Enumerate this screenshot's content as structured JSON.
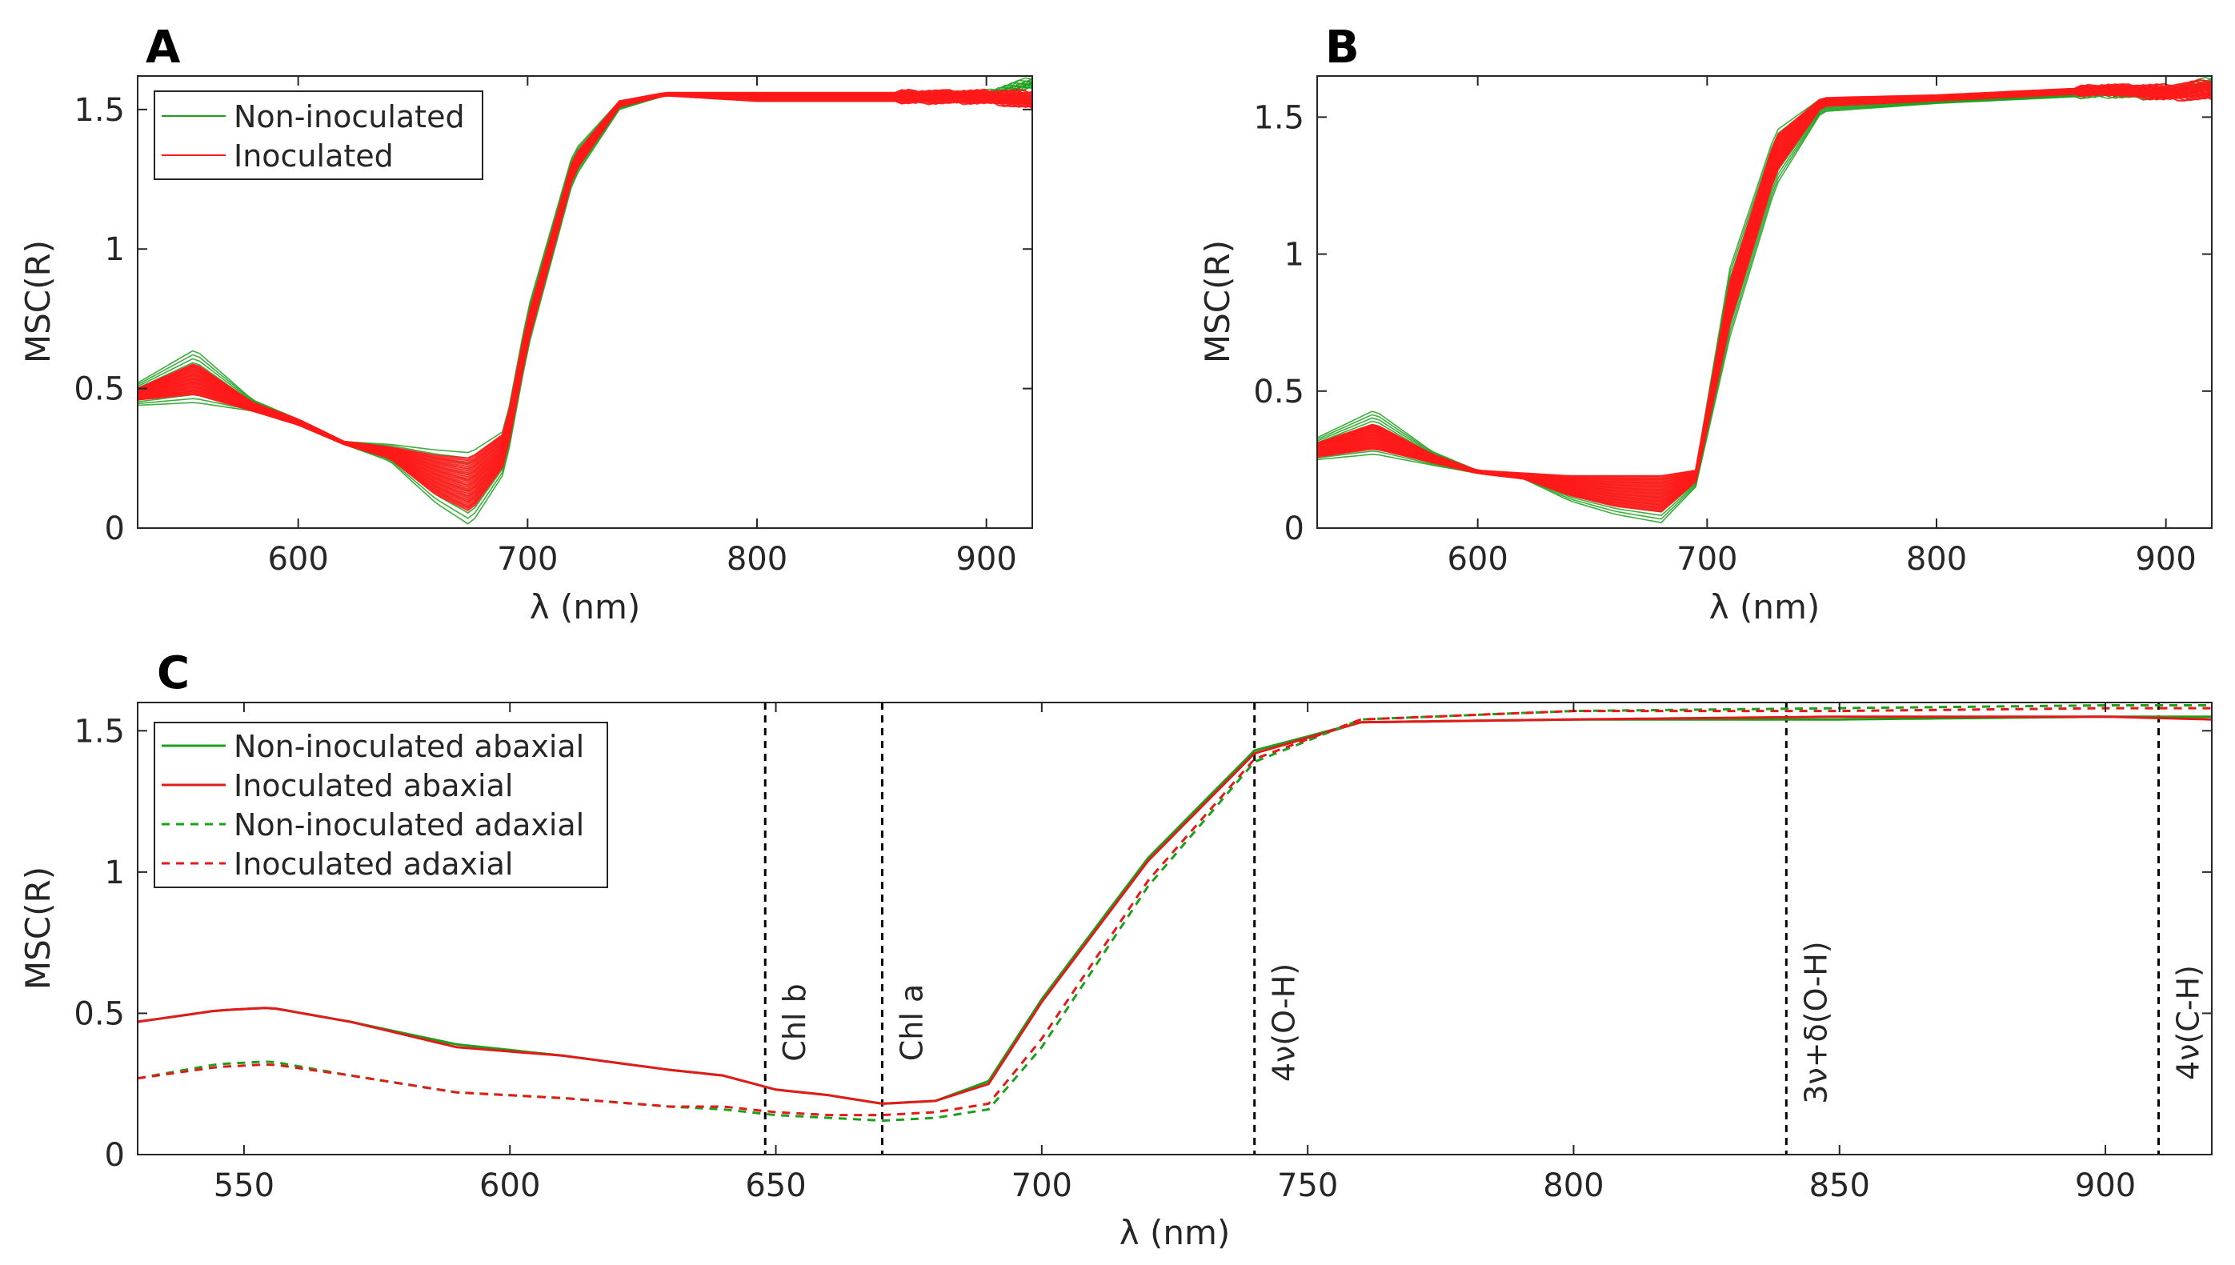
{
  "chart_data": [
    {
      "panel": "A",
      "type": "line",
      "xlabel": "λ (nm)",
      "ylabel": "MSC(R)",
      "xlim": [
        530,
        920
      ],
      "ylim": [
        0,
        1.62
      ],
      "xticks": [
        600,
        700,
        800,
        900
      ],
      "yticks": [
        0,
        0.5,
        1,
        1.5
      ],
      "ytick_labels": [
        "0",
        "0.5",
        "1",
        "1.5"
      ],
      "legend": {
        "position": "top-left",
        "entries": [
          {
            "label": "Non-inoculated",
            "color": "#1ca01c"
          },
          {
            "label": "Inoculated",
            "color": "#ff1a1a"
          }
        ]
      },
      "x": [
        530,
        555,
        580,
        600,
        620,
        640,
        660,
        675,
        690,
        700,
        720,
        740,
        760,
        800,
        900,
        920
      ],
      "series": [
        {
          "name": "Non-inoculated (upper envelope)",
          "values": [
            0.52,
            0.64,
            0.46,
            0.39,
            0.31,
            0.3,
            0.28,
            0.27,
            0.35,
            0.78,
            1.35,
            1.53,
            1.56,
            1.55,
            1.56,
            1.61
          ]
        },
        {
          "name": "Non-inoculated (lower envelope)",
          "values": [
            0.44,
            0.45,
            0.42,
            0.37,
            0.3,
            0.24,
            0.09,
            0.01,
            0.2,
            0.64,
            1.25,
            1.5,
            1.55,
            1.54,
            1.54,
            1.58
          ]
        },
        {
          "name": "Inoculated (upper envelope)",
          "values": [
            0.5,
            0.59,
            0.45,
            0.39,
            0.31,
            0.29,
            0.26,
            0.25,
            0.34,
            0.75,
            1.33,
            1.53,
            1.56,
            1.56,
            1.56,
            1.56
          ]
        },
        {
          "name": "Inoculated (lower envelope)",
          "values": [
            0.46,
            0.48,
            0.42,
            0.37,
            0.3,
            0.25,
            0.12,
            0.06,
            0.23,
            0.66,
            1.27,
            1.51,
            1.55,
            1.53,
            1.53,
            1.51
          ]
        }
      ]
    },
    {
      "panel": "B",
      "type": "line",
      "xlabel": "λ (nm)",
      "ylabel": "MSC(R)",
      "xlim": [
        530,
        920
      ],
      "ylim": [
        0,
        1.65
      ],
      "xticks": [
        600,
        700,
        800,
        900
      ],
      "yticks": [
        0,
        0.5,
        1,
        1.5
      ],
      "ytick_labels": [
        "0",
        "0.5",
        "1",
        "1.5"
      ],
      "x": [
        530,
        555,
        580,
        600,
        620,
        640,
        660,
        680,
        695,
        710,
        730,
        750,
        800,
        875,
        900,
        920
      ],
      "series": [
        {
          "name": "Non-inoculated (upper envelope)",
          "values": [
            0.33,
            0.43,
            0.28,
            0.21,
            0.2,
            0.19,
            0.19,
            0.19,
            0.21,
            0.95,
            1.45,
            1.57,
            1.57,
            1.6,
            1.6,
            1.64
          ]
        },
        {
          "name": "Non-inoculated (lower envelope)",
          "values": [
            0.25,
            0.27,
            0.23,
            0.2,
            0.18,
            0.1,
            0.05,
            0.02,
            0.15,
            0.7,
            1.25,
            1.52,
            1.55,
            1.58,
            1.57,
            1.61
          ]
        },
        {
          "name": "Inoculated (upper envelope)",
          "values": [
            0.31,
            0.38,
            0.27,
            0.21,
            0.2,
            0.19,
            0.19,
            0.19,
            0.21,
            0.9,
            1.43,
            1.57,
            1.58,
            1.61,
            1.61,
            1.63
          ]
        },
        {
          "name": "Inoculated (lower envelope)",
          "values": [
            0.26,
            0.29,
            0.24,
            0.2,
            0.18,
            0.12,
            0.08,
            0.06,
            0.17,
            0.75,
            1.3,
            1.54,
            1.56,
            1.59,
            1.57,
            1.57
          ]
        }
      ]
    },
    {
      "panel": "C",
      "type": "line",
      "xlabel": "λ (nm)",
      "ylabel": "MSC(R)",
      "xlim": [
        530,
        920
      ],
      "ylim": [
        0,
        1.6
      ],
      "xticks": [
        550,
        600,
        650,
        700,
        750,
        800,
        850,
        900
      ],
      "yticks": [
        0,
        0.5,
        1,
        1.5
      ],
      "ytick_labels": [
        "0",
        "0.5",
        "1",
        "1.5"
      ],
      "legend": {
        "position": "top-left",
        "entries": [
          {
            "label": "Non-inoculated abaxial",
            "color": "#1ca01c",
            "style": "solid"
          },
          {
            "label": "Inoculated abaxial",
            "color": "#e31a1a",
            "style": "solid"
          },
          {
            "label": "Non-inoculated adaxial",
            "color": "#1ca01c",
            "style": "dashed"
          },
          {
            "label": "Inoculated adaxial",
            "color": "#e31a1a",
            "style": "dashed"
          }
        ]
      },
      "x": [
        530,
        545,
        555,
        570,
        590,
        610,
        630,
        640,
        650,
        660,
        670,
        680,
        690,
        700,
        720,
        740,
        760,
        800,
        850,
        900,
        920
      ],
      "series": [
        {
          "name": "Non-inoculated abaxial",
          "color": "#1ca01c",
          "style": "solid",
          "values": [
            0.47,
            0.51,
            0.52,
            0.47,
            0.39,
            0.35,
            0.3,
            0.28,
            0.23,
            0.21,
            0.18,
            0.19,
            0.26,
            0.55,
            1.05,
            1.43,
            1.53,
            1.54,
            1.54,
            1.55,
            1.55
          ]
        },
        {
          "name": "Inoculated abaxial",
          "color": "#e31a1a",
          "style": "solid",
          "values": [
            0.47,
            0.51,
            0.52,
            0.47,
            0.38,
            0.35,
            0.3,
            0.28,
            0.23,
            0.21,
            0.18,
            0.19,
            0.25,
            0.54,
            1.04,
            1.42,
            1.53,
            1.54,
            1.55,
            1.55,
            1.54
          ]
        },
        {
          "name": "Non-inoculated adaxial",
          "color": "#1ca01c",
          "style": "dashed",
          "values": [
            0.27,
            0.32,
            0.33,
            0.28,
            0.22,
            0.2,
            0.17,
            0.16,
            0.14,
            0.13,
            0.12,
            0.13,
            0.16,
            0.38,
            0.95,
            1.39,
            1.54,
            1.57,
            1.58,
            1.59,
            1.59
          ]
        },
        {
          "name": "Inoculated adaxial",
          "color": "#e31a1a",
          "style": "dashed",
          "values": [
            0.27,
            0.31,
            0.32,
            0.28,
            0.22,
            0.2,
            0.17,
            0.17,
            0.15,
            0.14,
            0.14,
            0.15,
            0.18,
            0.41,
            0.97,
            1.4,
            1.54,
            1.57,
            1.57,
            1.58,
            1.58
          ]
        }
      ],
      "annotations": [
        {
          "x": 648,
          "label": "Chl b"
        },
        {
          "x": 670,
          "label": "Chl a"
        },
        {
          "x": 740,
          "label": "4ν(O-H)"
        },
        {
          "x": 840,
          "label": "3ν+δ(O-H)"
        },
        {
          "x": 910,
          "label": "4ν(C-H)"
        }
      ]
    }
  ]
}
